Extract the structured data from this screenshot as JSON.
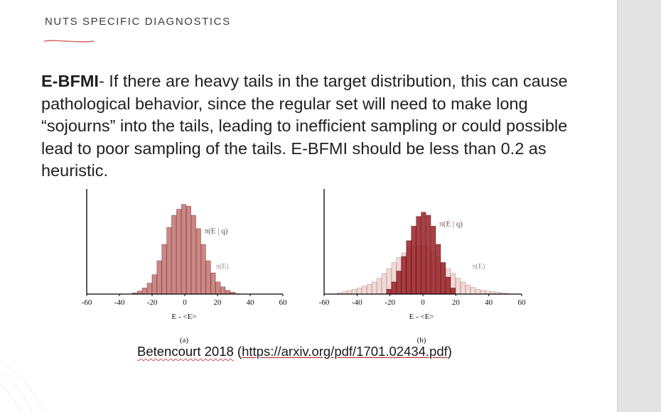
{
  "slide": {
    "section_title": "NUTS SPECIFIC DIAGNOSTICS",
    "body_lead": "E-BFMI",
    "body_text": "- If there are heavy tails in the target distribution, this can cause pathological behavior, since the regular set will need to make long “sojourns” into the tails, leading to inefficient sampling or could possible lead to poor sampling of the tails.  E-BFMI should be less than 0.2 as heuristic.",
    "citation_author": "Betencourt 2018",
    "citation_open": " (",
    "citation_link": "https://arxiv.org/pdf/1701.02434.pdf",
    "citation_close": ")"
  },
  "colors": {
    "bar_fill": "#c98886",
    "bar_stroke": "#8a3a3a",
    "bar_light": "#f1d9d7",
    "bar_dark": "#9a1f25",
    "axis": "#000000",
    "link_underline": "#b02222"
  },
  "chart_data": [
    {
      "type": "histogram",
      "panel_label": "(a)",
      "xlabel": "E - <E>",
      "xticks": [
        -60,
        -40,
        -20,
        0,
        20,
        40,
        60
      ],
      "xlim": [
        -60,
        60
      ],
      "series": [
        {
          "name": "π(E | q)",
          "bins": [
            -32,
            -29,
            -26,
            -23,
            -20,
            -17,
            -14,
            -11,
            -8,
            -5,
            -2,
            1,
            4,
            7,
            10,
            13,
            16,
            19,
            22,
            25,
            28
          ],
          "values": [
            2,
            5,
            10,
            18,
            32,
            55,
            82,
            110,
            130,
            140,
            148,
            145,
            130,
            108,
            82,
            55,
            35,
            20,
            12,
            6,
            3
          ]
        },
        {
          "name": "π(E)",
          "bins": [
            -32,
            -29,
            -26,
            -23,
            -20,
            -17,
            -14,
            -11,
            -8,
            -5,
            -2,
            1,
            4,
            7,
            10,
            13,
            16,
            19,
            22,
            25,
            28,
            31
          ],
          "values": [
            2,
            4,
            9,
            17,
            30,
            52,
            80,
            108,
            128,
            138,
            145,
            143,
            128,
            106,
            80,
            54,
            34,
            19,
            11,
            6,
            3,
            1
          ]
        }
      ]
    },
    {
      "type": "histogram",
      "panel_label": "(b)",
      "xlabel": "E - <E>",
      "xticks": [
        -60,
        -40,
        -20,
        0,
        20,
        40,
        60
      ],
      "xlim": [
        -60,
        60
      ],
      "series": [
        {
          "name": "π(E | q)",
          "bins": [
            -22,
            -19,
            -16,
            -13,
            -10,
            -7,
            -4,
            -1,
            2,
            5,
            8,
            11,
            14,
            17
          ],
          "values": [
            8,
            20,
            38,
            62,
            88,
            112,
            128,
            135,
            130,
            112,
            82,
            52,
            28,
            10
          ]
        },
        {
          "name": "π(E)",
          "bins": [
            -52,
            -49,
            -46,
            -43,
            -40,
            -37,
            -34,
            -31,
            -28,
            -25,
            -22,
            -19,
            -16,
            -13,
            -10,
            -7,
            -4,
            -1,
            2,
            5,
            8,
            11,
            14,
            17,
            20,
            23,
            26,
            29,
            32,
            35,
            38,
            41,
            44,
            47,
            50
          ],
          "values": [
            2,
            4,
            6,
            8,
            10,
            13,
            16,
            20,
            26,
            34,
            42,
            52,
            60,
            68,
            74,
            78,
            80,
            80,
            76,
            70,
            62,
            52,
            42,
            34,
            26,
            20,
            15,
            11,
            8,
            6,
            5,
            4,
            3,
            2,
            1
          ]
        }
      ]
    }
  ]
}
